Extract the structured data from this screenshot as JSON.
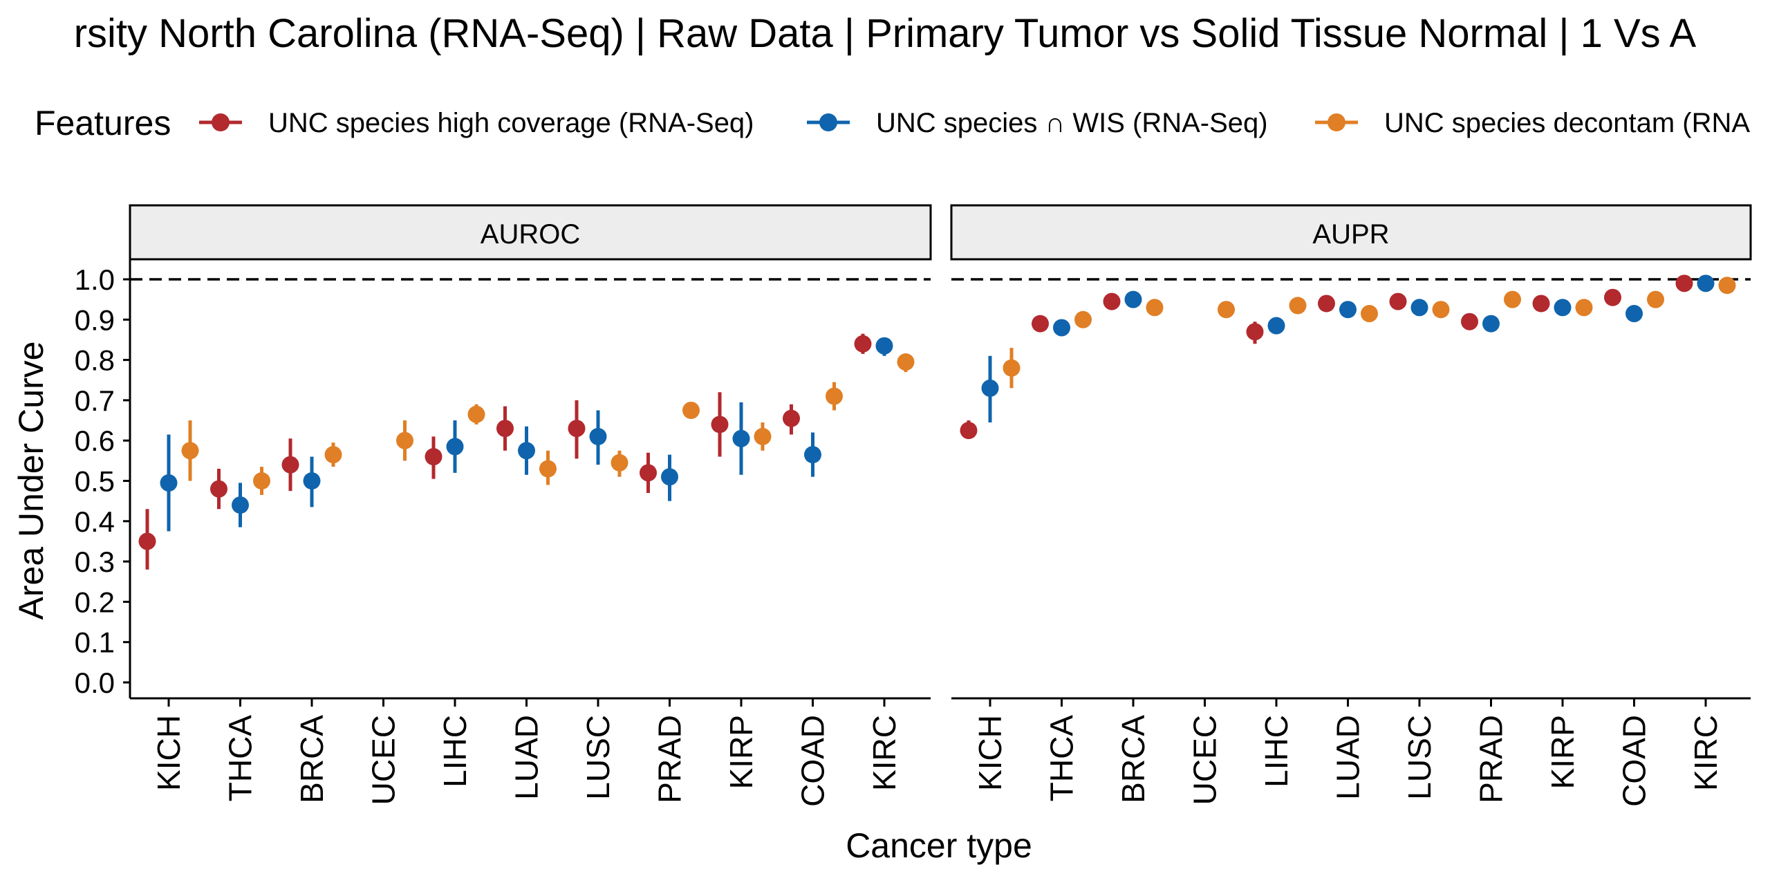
{
  "chart_data": {
    "type": "scatter",
    "title": "rsity North Carolina (RNA-Seq) | Raw Data | Primary Tumor vs Solid Tissue Normal | 1 Vs A",
    "xlabel": "Cancer type",
    "ylabel": "Area Under Curve",
    "ylim": [
      0,
      1
    ],
    "y_ticks": [
      "0.0",
      "0.1",
      "0.2",
      "0.3",
      "0.4",
      "0.5",
      "0.6",
      "0.7",
      "0.8",
      "0.9",
      "1.0"
    ],
    "reference_line": 1.0,
    "grid": false,
    "legend": {
      "title": "Features",
      "placement": "top",
      "entries": [
        {
          "label": "UNC species high coverage (RNA-Seq)",
          "color": "#b2292e"
        },
        {
          "label": "UNC species ∩ WIS (RNA-Seq)",
          "color": "#0f64ad"
        },
        {
          "label": "UNC species decontam (RNA",
          "color": "#e07f25"
        }
      ]
    },
    "categories": [
      "KICH",
      "THCA",
      "BRCA",
      "UCEC",
      "LIHC",
      "LUAD",
      "LUSC",
      "PRAD",
      "KIRP",
      "COAD",
      "KIRC"
    ],
    "panels": [
      {
        "name": "AUROC",
        "series": [
          {
            "color": "#b2292e",
            "values": [
              0.35,
              0.48,
              0.54,
              null,
              0.56,
              0.63,
              0.63,
              0.52,
              0.64,
              0.655,
              0.84
            ],
            "lower": [
              0.28,
              0.43,
              0.475,
              null,
              0.505,
              0.575,
              0.555,
              0.47,
              0.56,
              0.615,
              0.815
            ],
            "upper": [
              0.43,
              0.53,
              0.605,
              null,
              0.61,
              0.685,
              0.7,
              0.57,
              0.72,
              0.69,
              0.865
            ]
          },
          {
            "color": "#0f64ad",
            "values": [
              0.495,
              0.44,
              0.5,
              null,
              0.585,
              0.575,
              0.61,
              0.51,
              0.605,
              0.565,
              0.835
            ],
            "lower": [
              0.375,
              0.385,
              0.435,
              null,
              0.52,
              0.515,
              0.54,
              0.45,
              0.515,
              0.51,
              0.81
            ],
            "upper": [
              0.615,
              0.495,
              0.56,
              null,
              0.65,
              0.635,
              0.675,
              0.565,
              0.695,
              0.62,
              0.855
            ]
          },
          {
            "color": "#e07f25",
            "values": [
              0.575,
              0.5,
              0.565,
              0.6,
              0.665,
              0.53,
              0.545,
              0.675,
              0.61,
              0.71,
              0.795
            ],
            "lower": [
              0.5,
              0.465,
              0.535,
              0.55,
              0.64,
              0.49,
              0.51,
              0.66,
              0.575,
              0.675,
              0.77
            ],
            "upper": [
              0.65,
              0.535,
              0.595,
              0.65,
              0.69,
              0.575,
              0.575,
              0.69,
              0.645,
              0.745,
              0.815
            ]
          }
        ]
      },
      {
        "name": "AUPR",
        "series": [
          {
            "color": "#b2292e",
            "values": [
              0.625,
              0.89,
              0.945,
              null,
              0.87,
              0.94,
              0.945,
              0.895,
              0.94,
              0.955,
              0.99
            ],
            "lower": [
              0.605,
              0.88,
              0.935,
              null,
              0.84,
              0.93,
              0.935,
              0.885,
              0.93,
              0.945,
              0.985
            ],
            "upper": [
              0.65,
              0.9,
              0.955,
              null,
              0.895,
              0.95,
              0.955,
              0.905,
              0.95,
              0.965,
              0.995
            ]
          },
          {
            "color": "#0f64ad",
            "values": [
              0.73,
              0.88,
              0.95,
              null,
              0.885,
              0.925,
              0.93,
              0.89,
              0.93,
              0.915,
              0.99
            ],
            "lower": [
              0.645,
              0.87,
              0.94,
              null,
              0.865,
              0.915,
              0.92,
              0.88,
              0.92,
              0.9,
              0.985
            ],
            "upper": [
              0.81,
              0.89,
              0.96,
              null,
              0.905,
              0.935,
              0.94,
              0.9,
              0.94,
              0.93,
              0.995
            ]
          },
          {
            "color": "#e07f25",
            "values": [
              0.78,
              0.9,
              0.93,
              0.925,
              0.935,
              0.915,
              0.925,
              0.95,
              0.93,
              0.95,
              0.985
            ],
            "lower": [
              0.73,
              0.89,
              0.92,
              0.915,
              0.925,
              0.905,
              0.915,
              0.94,
              0.92,
              0.94,
              0.98
            ],
            "upper": [
              0.83,
              0.91,
              0.94,
              0.935,
              0.945,
              0.925,
              0.935,
              0.96,
              0.94,
              0.96,
              0.99
            ]
          }
        ]
      }
    ]
  }
}
